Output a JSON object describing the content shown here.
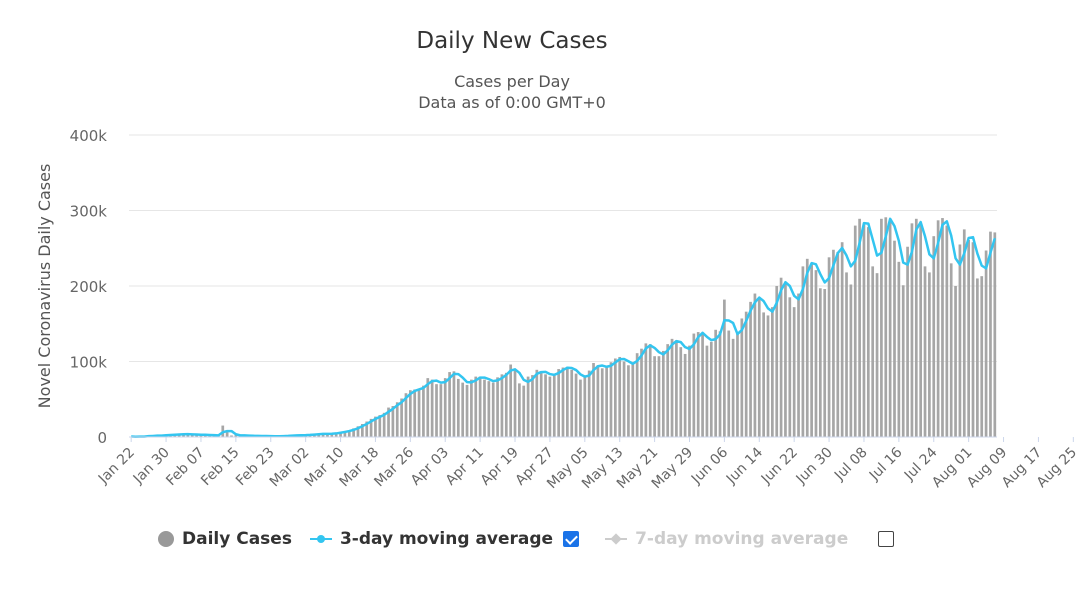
{
  "chart_data": {
    "type": "bar",
    "title": "Daily New Cases",
    "subtitle_lines": [
      "Cases per Day",
      "Data as of 0:00 GMT+0"
    ],
    "ylabel": "Novel Coronavirus Daily Cases",
    "ylim": [
      0,
      400000
    ],
    "y_ticks": [
      0,
      100000,
      200000,
      300000,
      400000
    ],
    "y_tick_labels": [
      "0",
      "100k",
      "200k",
      "300k",
      "400k"
    ],
    "x_start": "Jan 22",
    "x_end": "Aug 28",
    "x_tick_labels": [
      "Jan 22",
      "Jan 30",
      "Feb 07",
      "Feb 15",
      "Feb 23",
      "Mar 02",
      "Mar 10",
      "Mar 18",
      "Mar 26",
      "Apr 03",
      "Apr 11",
      "Apr 19",
      "Apr 27",
      "May 05",
      "May 13",
      "May 21",
      "May 29",
      "Jun 06",
      "Jun 14",
      "Jun 22",
      "Jun 30",
      "Jul 08",
      "Jul 16",
      "Jul 24",
      "Aug 01",
      "Aug 09",
      "Aug 17",
      "Aug 25"
    ],
    "grid": true,
    "legend_position": "bottom",
    "colors": {
      "bars": "#a6a6a6",
      "moving_avg": "#33c5f0",
      "grid": "#e6e6e6"
    },
    "series": [
      {
        "name": "Daily Cases",
        "kind": "bar",
        "values": [
          580,
          100,
          690,
          800,
          1780,
          1510,
          2000,
          2160,
          2990,
          2700,
          3110,
          3890,
          3730,
          3690,
          3140,
          3260,
          2590,
          2880,
          2550,
          2020,
          1820,
          15140,
          6400,
          2030,
          2450,
          2000,
          1800,
          1650,
          1300,
          1300,
          1500,
          950,
          900,
          1000,
          1200,
          1500,
          1800,
          2400,
          2100,
          2500,
          2800,
          3000,
          3800,
          4100,
          4400,
          4100,
          4600,
          5500,
          6800,
          7800,
          9000,
          11500,
          14200,
          17200,
          20500,
          24000,
          27000,
          29000,
          32000,
          39000,
          41000,
          46000,
          51000,
          58000,
          62000,
          63000,
          64000,
          68000,
          78000,
          76000,
          70000,
          70000,
          78000,
          86000,
          87000,
          77000,
          72000,
          69000,
          76000,
          80000,
          80000,
          76000,
          74000,
          72000,
          79000,
          83000,
          85000,
          96000,
          88000,
          71000,
          68000,
          80000,
          82000,
          89000,
          87000,
          83000,
          80000,
          84000,
          90000,
          92000,
          93000,
          89000,
          84000,
          76000,
          80000,
          88000,
          98000,
          95000,
          91000,
          93000,
          99000,
          104000,
          106000,
          100000,
          95000,
          96000,
          111000,
          117000,
          124000,
          123000,
          107000,
          107000,
          114000,
          123000,
          130000,
          128000,
          119000,
          110000,
          121000,
          137000,
          139000,
          138000,
          121000,
          126000,
          142000,
          140000,
          182000,
          141000,
          130000,
          138000,
          157000,
          166000,
          179000,
          190000,
          185000,
          165000,
          161000,
          172000,
          200000,
          211000,
          204000,
          185000,
          172000,
          190000,
          226000,
          236000,
          229000,
          221000,
          197000,
          196000,
          238000,
          248000,
          245000,
          258000,
          218000,
          202000,
          280000,
          289000,
          281000,
          278000,
          226000,
          217000,
          289000,
          291000,
          287000,
          260000,
          232000,
          201000,
          252000,
          283000,
          289000,
          282000,
          226000,
          218000,
          266000,
          287000,
          290000,
          280000,
          230000,
          200000,
          255000,
          275000,
          261000,
          258000,
          210000,
          213000,
          247000,
          272000,
          271000
        ]
      },
      {
        "name": "3-day moving average",
        "kind": "line",
        "checked": true
      },
      {
        "name": "7-day moving average",
        "kind": "line",
        "checked": false,
        "disabled": true
      }
    ]
  }
}
